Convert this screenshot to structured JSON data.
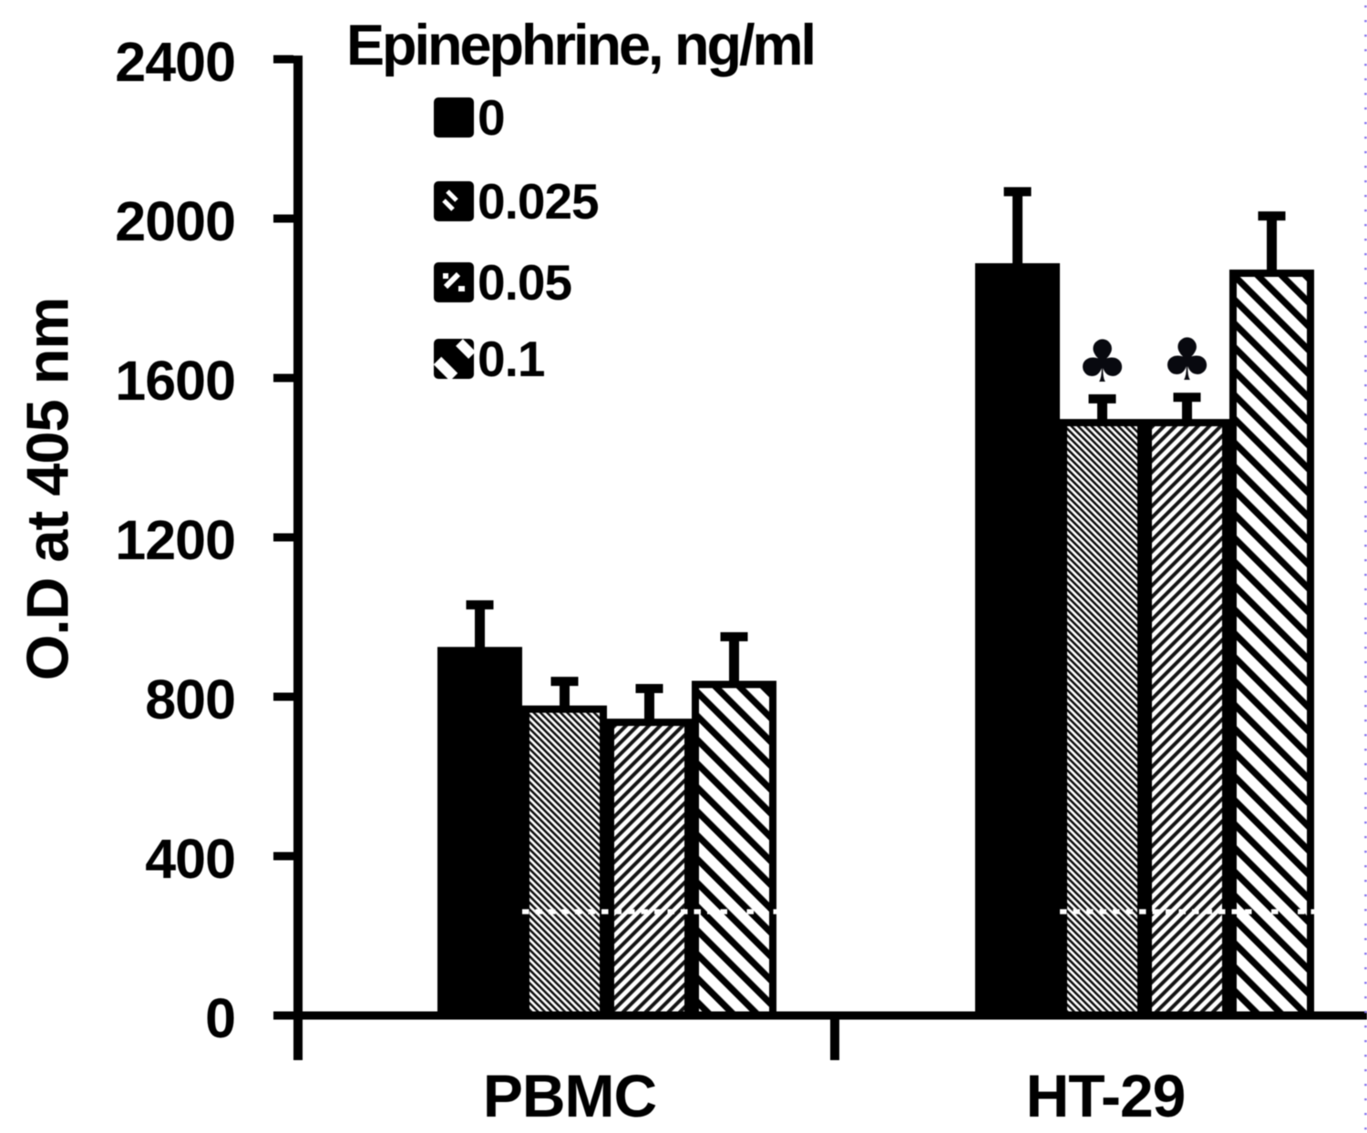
{
  "figure": {
    "background_color": "#ffffff",
    "ink_color": "#000000",
    "page_edge_dots_color": "#8472ec"
  },
  "chart_data": {
    "type": "bar",
    "title": "",
    "ylabel": "O.D at 405 nm",
    "xlabel": "",
    "ylim": [
      0,
      2400
    ],
    "y_ticks": [
      "0",
      "400",
      "800",
      "1200",
      "1600",
      "2000",
      "2400"
    ],
    "grid": false,
    "error_bars": "upper",
    "categories": [
      "PBMC",
      "HT-29"
    ],
    "legend": {
      "title": "Epinephrine, ng/ml",
      "position": "upper-left",
      "entries": [
        {
          "label": "0",
          "pattern": "solid-black"
        },
        {
          "label": "0.025",
          "pattern": "dense-backslash-hatch"
        },
        {
          "label": "0.05",
          "pattern": "medium-slash-hatch"
        },
        {
          "label": "0.1",
          "pattern": "wide-backslash-hatch"
        }
      ]
    },
    "series": [
      {
        "name": "0",
        "pattern": "solid-black",
        "values": [
          925,
          1888
        ],
        "errors": [
          117,
          191
        ]
      },
      {
        "name": "0.025",
        "pattern": "dense-backslash-hatch",
        "values": [
          778,
          1497
        ],
        "errors": [
          72,
          62
        ]
      },
      {
        "name": "0.05",
        "pattern": "medium-slash-hatch",
        "values": [
          745,
          1497
        ],
        "errors": [
          87,
          66
        ]
      },
      {
        "name": "0.1",
        "pattern": "wide-backslash-hatch",
        "values": [
          840,
          1872
        ],
        "errors": [
          122,
          146
        ]
      }
    ],
    "annotations": [
      {
        "symbol": "♣",
        "category": "HT-29",
        "series": "0.025"
      },
      {
        "symbol": "♣",
        "category": "HT-29",
        "series": "0.05"
      }
    ]
  }
}
